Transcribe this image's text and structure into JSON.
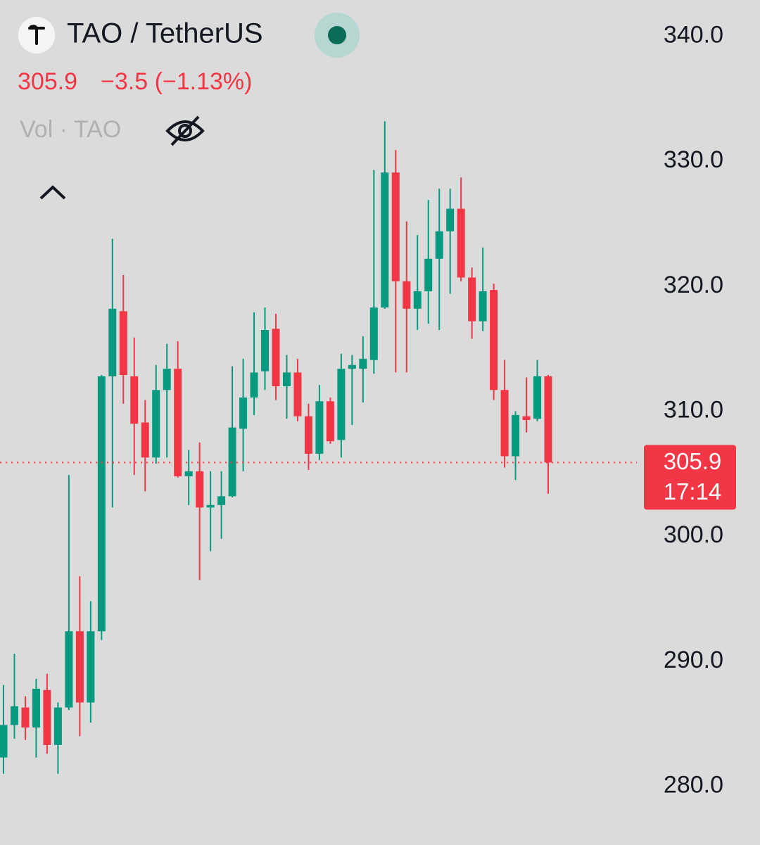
{
  "header": {
    "title": "TAO / TetherUS",
    "price": "305.9",
    "change": "−3.5 (−1.13%)",
    "volume_label": "Vol · TAO"
  },
  "chart_data": {
    "type": "candlestick",
    "up_color": "#089981",
    "down_color": "#f23645",
    "open": [
      282.3,
      284.9,
      286.3,
      284.7,
      287.7,
      283.3,
      286.3,
      292.4,
      286.7,
      292.4,
      312.8,
      318.0,
      312.8,
      309.1,
      306.3,
      311.7,
      313.4,
      304.8,
      305.2,
      302.3,
      302.5,
      303.2,
      308.6,
      311.1,
      313.2,
      316.6,
      312.0,
      313.1,
      309.6,
      306.6,
      310.8,
      307.7,
      313.4,
      313.4,
      314.1,
      318.3,
      329.1,
      320.4,
      318.2,
      319.6,
      322.2,
      324.4,
      326.2,
      320.7,
      317.2,
      319.7,
      311.7,
      306.4,
      309.6,
      309.4,
      312.8
    ],
    "high": [
      288.1,
      290.6,
      287.2,
      288.6,
      289.0,
      286.7,
      304.9,
      296.8,
      294.8,
      312.9,
      323.8,
      320.9,
      315.9,
      310.9,
      313.7,
      315.4,
      315.6,
      306.9,
      307.5,
      305.2,
      305.2,
      313.6,
      314.2,
      317.9,
      318.3,
      317.8,
      314.5,
      314.2,
      310.6,
      312.1,
      311.1,
      314.6,
      314.5,
      316.0,
      329.3,
      333.2,
      330.9,
      325.2,
      324.1,
      326.9,
      327.8,
      327.8,
      328.7,
      321.5,
      323.1,
      320.2,
      314.1,
      310.0,
      312.7,
      314.1,
      312.9
    ],
    "low": [
      281.0,
      283.8,
      283.7,
      282.3,
      282.6,
      281.0,
      286.1,
      284.0,
      285.1,
      291.7,
      302.3,
      310.6,
      304.9,
      303.6,
      305.8,
      306.3,
      304.7,
      302.5,
      296.5,
      298.8,
      299.8,
      303.1,
      305.2,
      309.7,
      311.7,
      310.9,
      309.4,
      309.2,
      305.3,
      306.1,
      307.4,
      306.3,
      308.9,
      310.7,
      313.0,
      318.2,
      313.1,
      313.1,
      316.5,
      317.0,
      316.5,
      319.4,
      320.4,
      315.8,
      316.4,
      310.9,
      305.5,
      304.5,
      308.3,
      309.2,
      303.4
    ],
    "close": [
      284.9,
      286.4,
      284.7,
      287.8,
      283.3,
      286.3,
      292.4,
      286.7,
      292.4,
      312.8,
      318.2,
      312.9,
      309.0,
      306.3,
      311.7,
      313.4,
      304.8,
      305.2,
      302.3,
      302.5,
      303.2,
      308.7,
      311.1,
      313.1,
      316.5,
      312.0,
      313.1,
      309.6,
      306.6,
      310.8,
      307.6,
      313.4,
      313.7,
      314.2,
      318.3,
      329.1,
      320.4,
      318.2,
      319.6,
      322.2,
      324.4,
      326.2,
      320.7,
      317.2,
      319.6,
      311.7,
      306.4,
      309.7,
      309.3,
      312.8,
      305.9
    ],
    "ylim": [
      275.3,
      342.9
    ],
    "yticks": [
      {
        "value": 280,
        "label": "280.0"
      },
      {
        "value": 290,
        "label": "290.0"
      },
      {
        "value": 300,
        "label": "300.0"
      },
      {
        "value": 310,
        "label": "310.0"
      },
      {
        "value": 320,
        "label": "320.0"
      },
      {
        "value": 330,
        "label": "330.0"
      },
      {
        "value": 340,
        "label": "340.0"
      }
    ],
    "last_price": 305.9,
    "countdown": "17:14"
  }
}
